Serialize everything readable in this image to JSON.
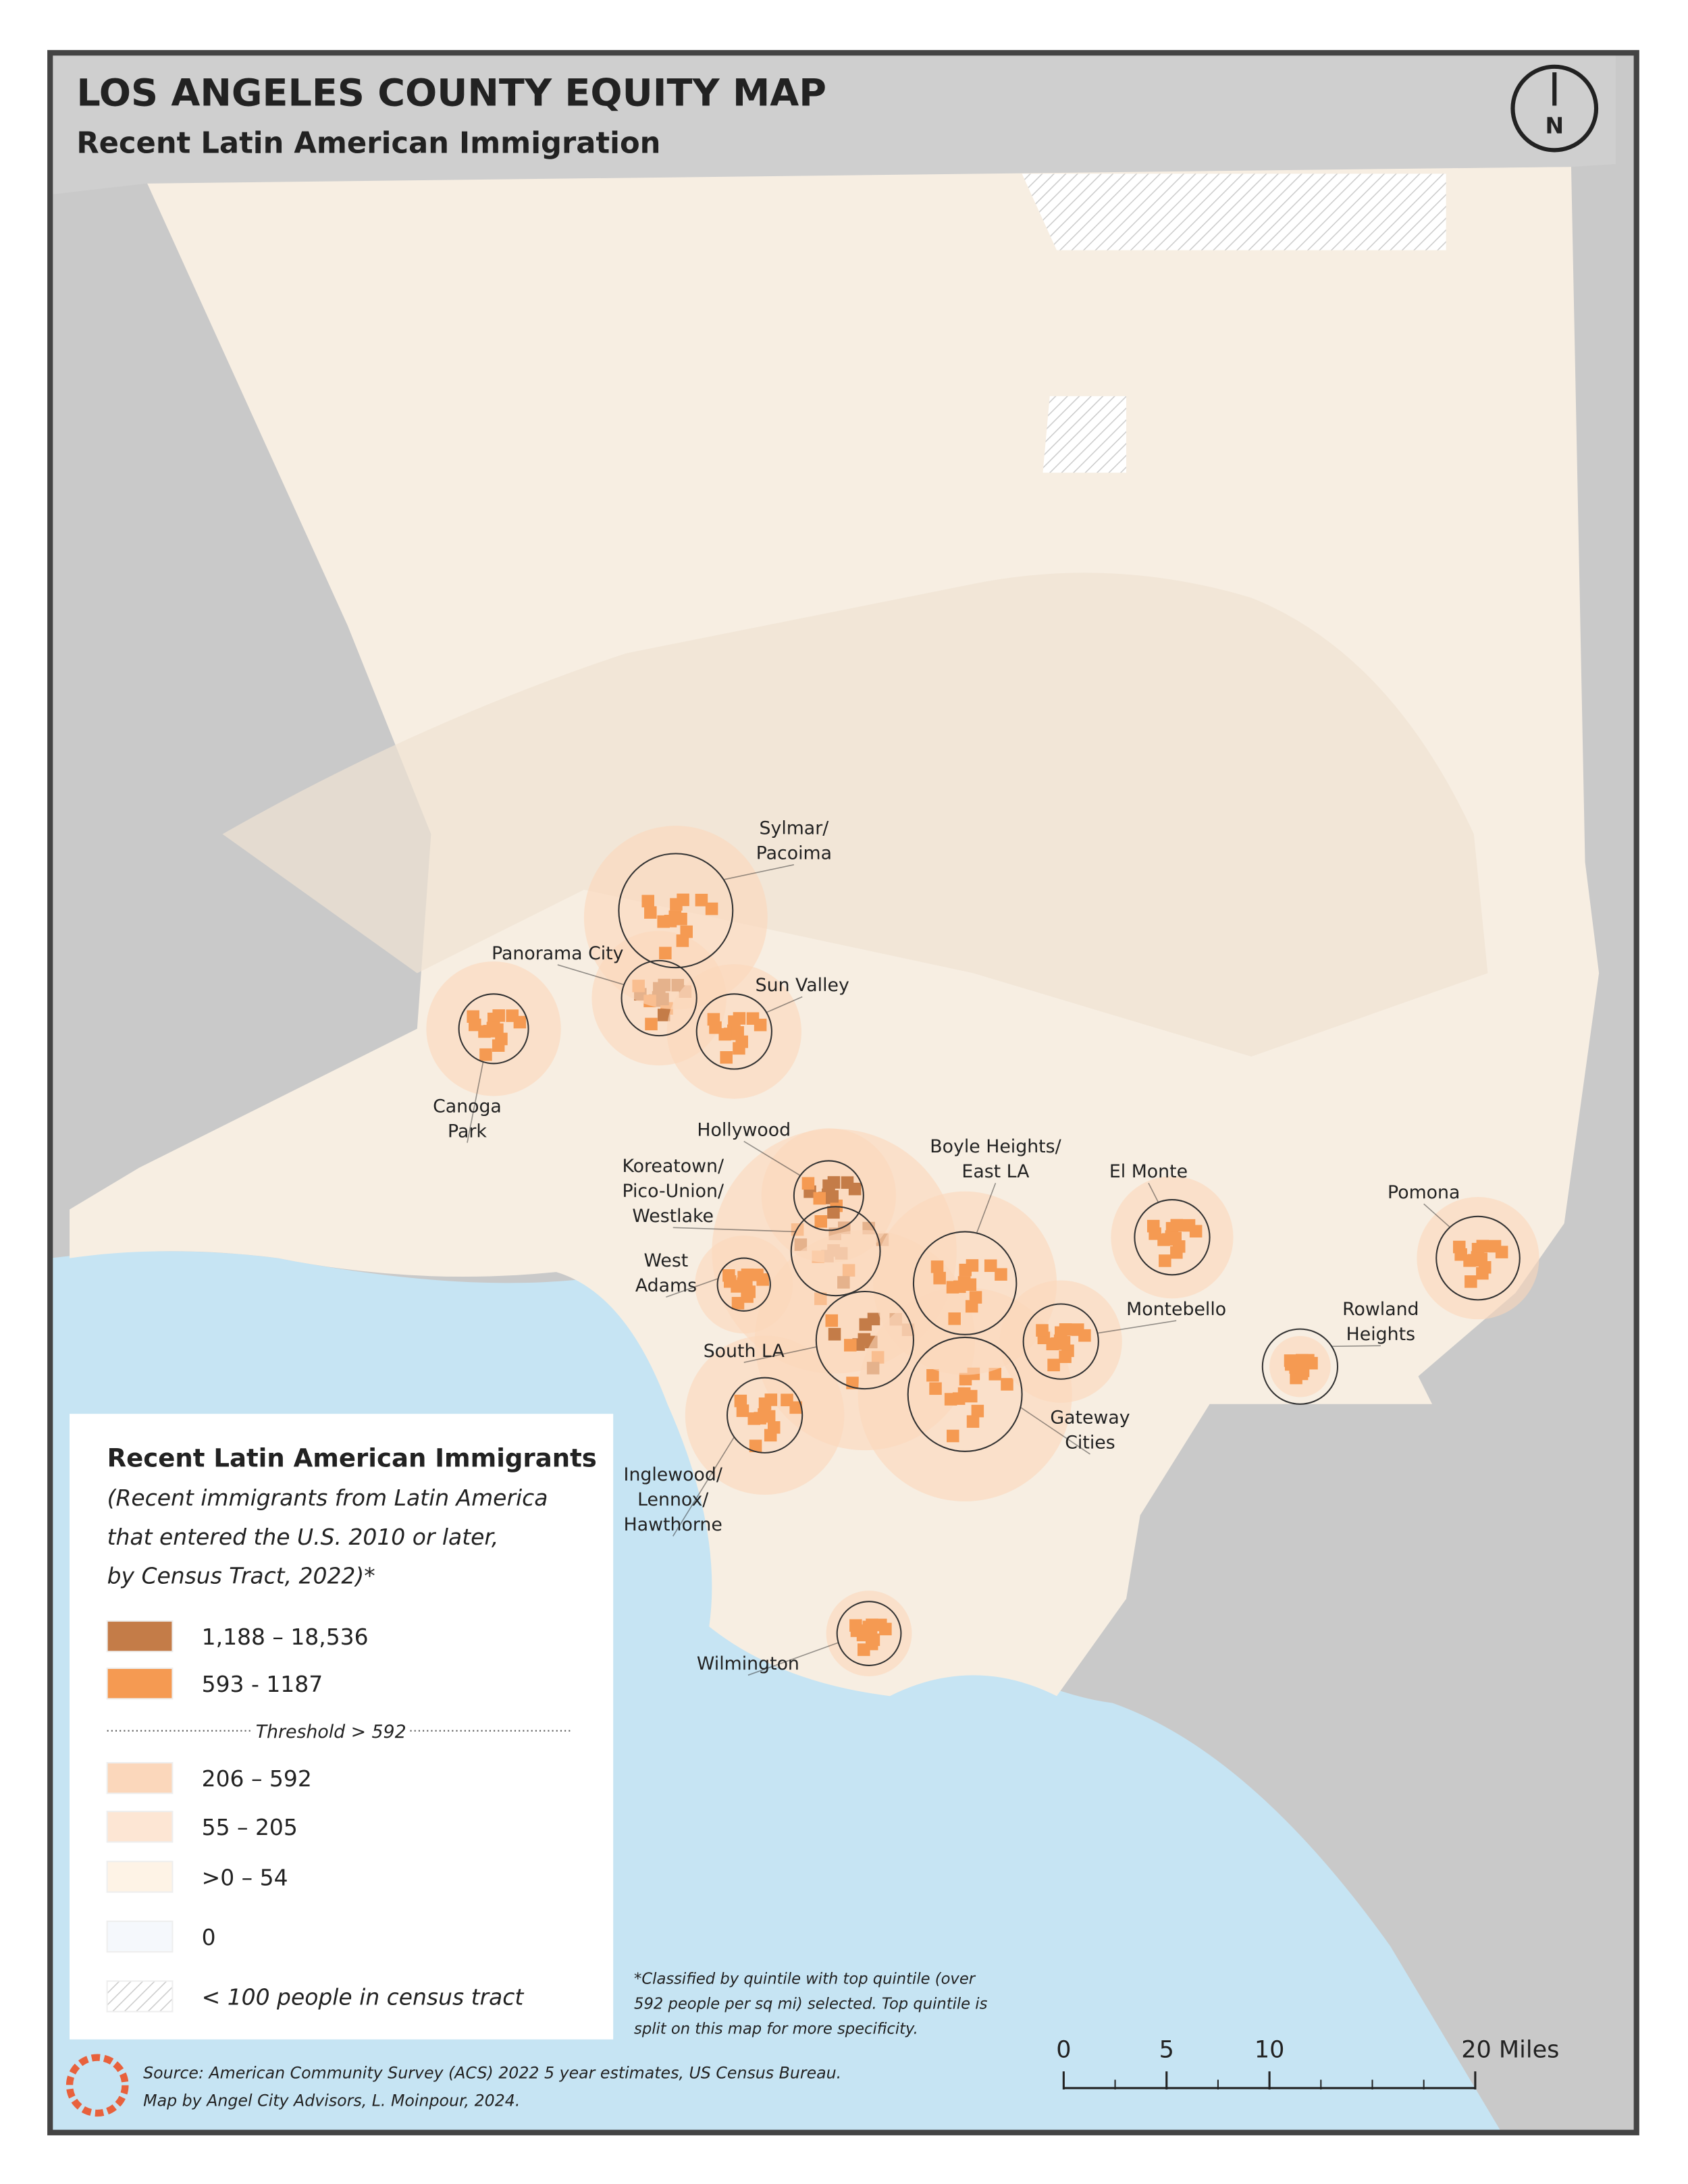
{
  "header": {
    "title": "LOS ANGELES COUNTY EQUITY MAP",
    "subtitle": "Recent Latin American Immigration",
    "north": "N"
  },
  "places": [
    {
      "lines": [
        "Sylmar/",
        "Pacoima"
      ]
    },
    {
      "lines": [
        "Panorama City"
      ]
    },
    {
      "lines": [
        "Sun Valley"
      ]
    },
    {
      "lines": [
        "Canoga",
        "Park"
      ]
    },
    {
      "lines": [
        "Hollywood"
      ]
    },
    {
      "lines": [
        "Koreatown/",
        "Pico-Union/",
        "Westlake"
      ]
    },
    {
      "lines": [
        "Boyle Heights/",
        "East LA"
      ]
    },
    {
      "lines": [
        "El Monte"
      ]
    },
    {
      "lines": [
        "Pomona"
      ]
    },
    {
      "lines": [
        "West",
        "Adams"
      ]
    },
    {
      "lines": [
        "Montebello"
      ]
    },
    {
      "lines": [
        "Rowland",
        "Heights"
      ]
    },
    {
      "lines": [
        "South LA"
      ]
    },
    {
      "lines": [
        "Gateway",
        "Cities"
      ]
    },
    {
      "lines": [
        "Inglewood/",
        "Lennox/",
        "Hawthorne"
      ]
    },
    {
      "lines": [
        "Wilmington"
      ]
    }
  ],
  "legend": {
    "title": "Recent Latin American Immigrants",
    "description": [
      "(Recent immigrants from Latin America",
      "that entered the U.S. 2010 or later,",
      "by Census Tract, 2022)*"
    ],
    "items_top": [
      {
        "label": "1,188 – 18,536",
        "color": "#c47c48"
      },
      {
        "label": "593 - 1187",
        "color": "#f59a52"
      }
    ],
    "threshold": "Threshold > 592",
    "items_bottom": [
      {
        "label": "206 – 592",
        "color": "#fbd7bb"
      },
      {
        "label": "55 – 205",
        "color": "#fde6d4"
      },
      {
        "label": ">0 – 54",
        "color": "#fef3e6"
      },
      {
        "label": "0",
        "color": "#f5f8fc"
      },
      {
        "label": "< 100 people in census tract",
        "color": "hatch"
      }
    ]
  },
  "footnote": [
    "*Classified by quintile with top quintile (over",
    "592 people per sq mi) selected. Top quintile is",
    "split on this map for more specificity."
  ],
  "scale_bar": {
    "ticks": [
      0,
      5,
      10,
      {
        "value": 20,
        "label": "20 Miles"
      }
    ]
  },
  "source": [
    "Source: American Community Survey (ACS) 2022 5 year estimates, US Census Bureau.",
    "Map by Angel City Advisors, L. Moinpour, 2024."
  ]
}
